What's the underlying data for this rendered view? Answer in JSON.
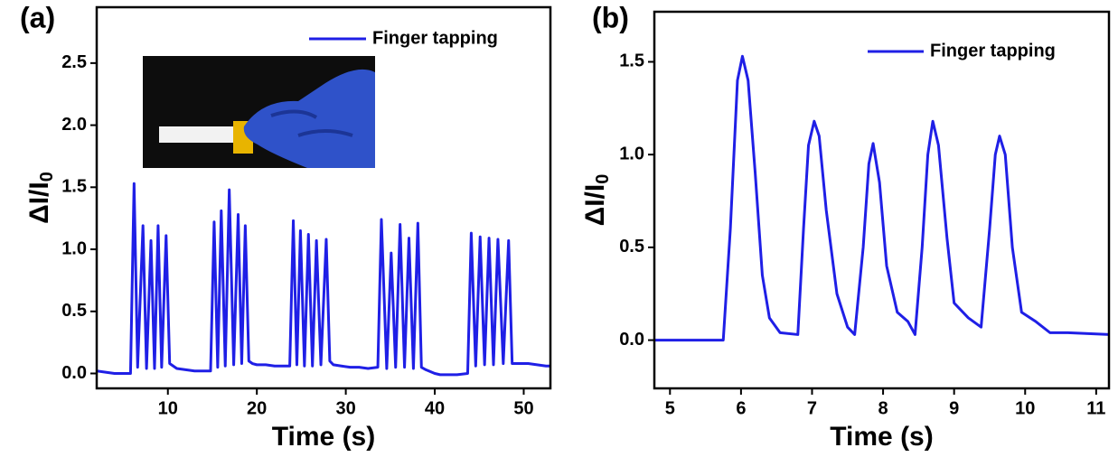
{
  "chart_data": [
    {
      "type": "line",
      "panel_label": "(a)",
      "x_label": "Time (s)",
      "y_label": {
        "text": "ΔI/I",
        "subscript": "0"
      },
      "x": [
        2,
        3,
        4,
        5,
        5.8,
        6.2,
        6.6,
        7.2,
        7.6,
        8.1,
        8.5,
        8.9,
        9.3,
        9.8,
        10.2,
        11,
        12,
        13,
        14,
        14.8,
        15.2,
        15.6,
        16.0,
        16.45,
        16.9,
        17.4,
        17.9,
        18.3,
        18.7,
        19.1,
        19.5,
        20,
        21,
        22,
        23,
        23.7,
        24.1,
        24.5,
        24.9,
        25.35,
        25.8,
        26.25,
        26.7,
        27.2,
        27.8,
        28.2,
        28.6,
        29.5,
        30.5,
        31.5,
        32.5,
        33.6,
        34.0,
        34.6,
        35.1,
        35.6,
        36.1,
        36.6,
        37.1,
        37.6,
        38.1,
        38.5,
        39,
        40,
        40.6,
        41.5,
        42.5,
        43.7,
        44.1,
        44.6,
        45.1,
        45.6,
        46.1,
        46.6,
        47.1,
        47.7,
        48.3,
        48.7,
        49.5,
        50.5,
        51.5,
        52.5,
        53
      ],
      "series": [
        {
          "name": "Finger tapping",
          "color": "#1f1fe6",
          "values": [
            0.02,
            0.01,
            0.0,
            0.0,
            0.0,
            1.53,
            0.05,
            1.19,
            0.04,
            1.07,
            0.04,
            1.19,
            0.05,
            1.11,
            0.08,
            0.04,
            0.03,
            0.02,
            0.02,
            0.02,
            1.22,
            0.05,
            1.31,
            0.06,
            1.48,
            0.07,
            1.28,
            0.08,
            1.19,
            0.1,
            0.08,
            0.07,
            0.07,
            0.06,
            0.06,
            0.06,
            1.23,
            0.07,
            1.15,
            0.06,
            1.12,
            0.06,
            1.07,
            0.07,
            1.08,
            0.1,
            0.07,
            0.06,
            0.05,
            0.05,
            0.04,
            0.05,
            1.24,
            0.04,
            0.97,
            0.05,
            1.2,
            0.05,
            1.09,
            0.04,
            1.21,
            0.05,
            0.03,
            0.0,
            -0.01,
            -0.01,
            -0.01,
            0.0,
            1.13,
            0.06,
            1.1,
            0.07,
            1.09,
            0.07,
            1.08,
            0.08,
            1.07,
            0.08,
            0.08,
            0.08,
            0.07,
            0.06,
            0.06
          ]
        }
      ],
      "xlim": [
        2,
        53
      ],
      "xticks": [
        10,
        20,
        30,
        40,
        50
      ],
      "ylim": [
        -0.12,
        2.95
      ],
      "yticks": [
        {
          "value": 0,
          "label": "0.0"
        },
        0.5,
        {
          "value": 1,
          "label": "1.0"
        },
        1.5,
        {
          "value": 2,
          "label": "2.0"
        },
        2.5
      ],
      "legend": "upper right"
    },
    {
      "type": "line",
      "panel_label": "(b)",
      "x_label": "Time (s)",
      "y_label": {
        "text": "ΔI/I",
        "subscript": "0"
      },
      "x": [
        4.78,
        5.0,
        5.5,
        5.75,
        5.85,
        5.95,
        6.02,
        6.1,
        6.2,
        6.3,
        6.4,
        6.55,
        6.8,
        6.88,
        6.95,
        7.03,
        7.1,
        7.2,
        7.35,
        7.5,
        7.6,
        7.72,
        7.8,
        7.86,
        7.95,
        8.05,
        8.2,
        8.35,
        8.45,
        8.55,
        8.63,
        8.7,
        8.78,
        8.9,
        9.0,
        9.2,
        9.38,
        9.5,
        9.58,
        9.64,
        9.72,
        9.82,
        9.95,
        10.15,
        10.35,
        10.6,
        11.18
      ],
      "series": [
        {
          "name": "Finger tapping",
          "color": "#1f1fe6",
          "values": [
            0.0,
            0.0,
            0.0,
            0.0,
            0.6,
            1.4,
            1.53,
            1.4,
            0.9,
            0.35,
            0.12,
            0.04,
            0.03,
            0.6,
            1.05,
            1.18,
            1.1,
            0.7,
            0.25,
            0.07,
            0.03,
            0.5,
            0.95,
            1.06,
            0.85,
            0.4,
            0.15,
            0.1,
            0.03,
            0.5,
            1.0,
            1.18,
            1.05,
            0.55,
            0.2,
            0.12,
            0.07,
            0.6,
            1.0,
            1.1,
            1.0,
            0.5,
            0.15,
            0.1,
            0.04,
            0.04,
            0.03
          ]
        }
      ],
      "xlim": [
        4.78,
        11.18
      ],
      "xticks": [
        5,
        6,
        7,
        8,
        9,
        10,
        11
      ],
      "ylim": [
        -0.26,
        1.77
      ],
      "yticks": [
        {
          "value": 0,
          "label": "0.0"
        },
        0.5,
        {
          "value": 1,
          "label": "1.0"
        },
        1.5
      ],
      "legend": "upper right"
    }
  ]
}
